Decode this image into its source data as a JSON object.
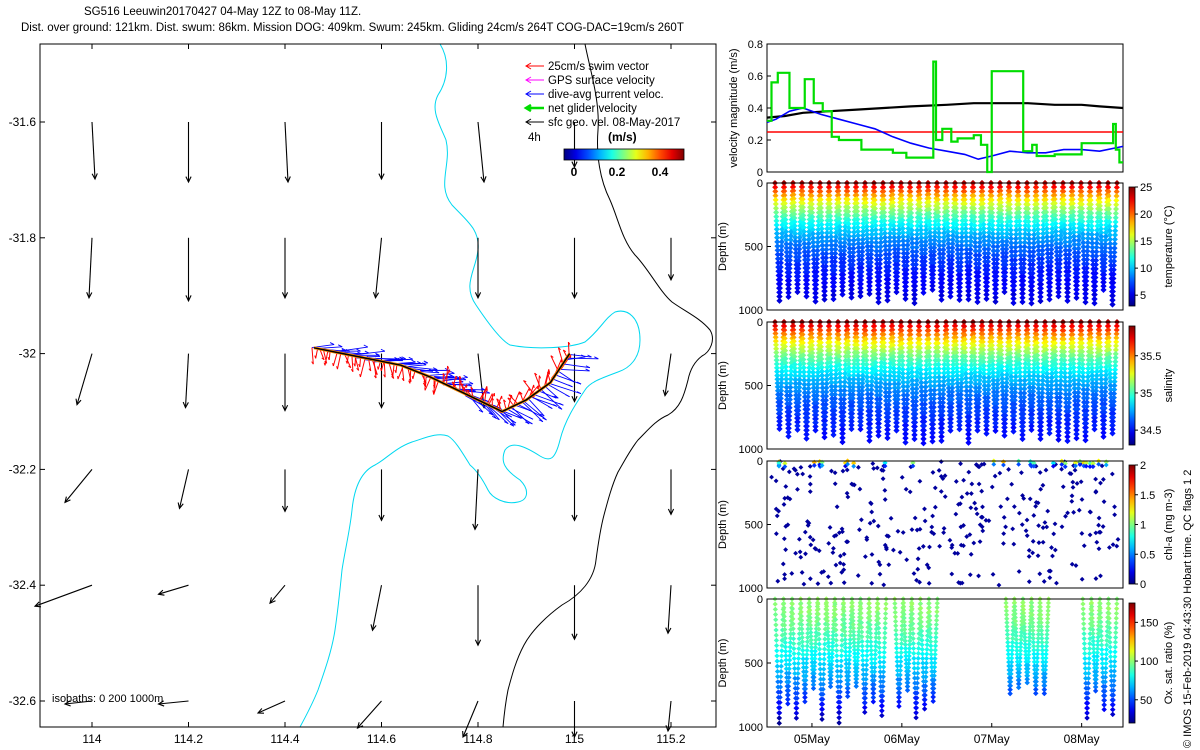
{
  "title_line1": "SG516 Leeuwin20170427 04-May 12Z to 08-May 11Z.",
  "title_line2": "Dist. over ground: 121km. Dist. swum: 86km. Mission DOG: 409km. Swum: 245km. Gliding 24cm/s 264T COG-DAC=19cm/s 260T",
  "credit": "© IMOS 15-Feb-2019 04:43:30 Hobart time. QC flags 1  2",
  "chart_data": [
    {
      "type": "map",
      "name": "track-map",
      "x_ticks": [
        "114",
        "114.2",
        "114.4",
        "114.6",
        "114.8",
        "115",
        "115.2"
      ],
      "x_tick_values": [
        114,
        114.2,
        114.4,
        114.6,
        114.8,
        115,
        115.2
      ],
      "y_ticks": [
        "-31.6",
        "-31.8",
        "-32",
        "-32.2",
        "-32.4",
        "-32.6"
      ],
      "y_tick_values": [
        -31.6,
        -31.8,
        -32,
        -32.2,
        -32.4,
        -32.6
      ],
      "xlim": [
        113.93,
        115.3
      ],
      "ylim": [
        -32.64,
        -31.47
      ],
      "legend": [
        {
          "label": "25cm/s swim vector",
          "color": "#ff0000"
        },
        {
          "label": "GPS surface velocity",
          "color": "#ff00ff"
        },
        {
          "label": "dive-avg current veloc.",
          "color": "#0000ff"
        },
        {
          "label": "net glider velocity",
          "color": "#00dd00"
        },
        {
          "label": "sfc geo. vel. 08-May-2017",
          "color": "#000000"
        }
      ],
      "vector_scale_label": "4h",
      "colorbar_title": "(m/s)",
      "colorbar_ticks": [
        "0",
        "0.2",
        "0.4"
      ],
      "isobaths_label": "isobaths: 0   200  1000m",
      "glider_track": {
        "lon": [
          114.46,
          114.52,
          114.58,
          114.64,
          114.7,
          114.75,
          114.8,
          114.85,
          114.9,
          114.95,
          114.99
        ],
        "lat": [
          -31.99,
          -32.0,
          -32.01,
          -32.02,
          -32.04,
          -32.06,
          -32.08,
          -32.1,
          -32.08,
          -32.05,
          -32.0
        ]
      },
      "geostrophic_vectors": [
        {
          "lon": 114.0,
          "lat": -31.6,
          "u": 0.01,
          "v": -0.19
        },
        {
          "lon": 114.2,
          "lat": -31.6,
          "u": 0.0,
          "v": -0.2
        },
        {
          "lon": 114.4,
          "lat": -31.6,
          "u": 0.01,
          "v": -0.2
        },
        {
          "lon": 114.6,
          "lat": -31.6,
          "u": 0.0,
          "v": -0.19
        },
        {
          "lon": 114.8,
          "lat": -31.6,
          "u": 0.02,
          "v": -0.2
        },
        {
          "lon": 115.0,
          "lat": -31.6,
          "u": 0.0,
          "v": -0.15
        },
        {
          "lon": 114.0,
          "lat": -31.8,
          "u": -0.01,
          "v": -0.2
        },
        {
          "lon": 114.2,
          "lat": -31.8,
          "u": 0.0,
          "v": -0.21
        },
        {
          "lon": 114.4,
          "lat": -31.8,
          "u": 0.0,
          "v": -0.2
        },
        {
          "lon": 114.6,
          "lat": -31.8,
          "u": -0.02,
          "v": -0.2
        },
        {
          "lon": 114.8,
          "lat": -31.8,
          "u": 0.0,
          "v": -0.2
        },
        {
          "lon": 115.0,
          "lat": -31.8,
          "u": 0.0,
          "v": -0.2
        },
        {
          "lon": 115.2,
          "lat": -31.8,
          "u": 0.0,
          "v": -0.14
        },
        {
          "lon": 114.0,
          "lat": -32.0,
          "u": -0.05,
          "v": -0.17
        },
        {
          "lon": 114.2,
          "lat": -32.0,
          "u": -0.01,
          "v": -0.18
        },
        {
          "lon": 114.4,
          "lat": -32.0,
          "u": 0.0,
          "v": -0.19
        },
        {
          "lon": 114.6,
          "lat": -32.0,
          "u": 0.0,
          "v": -0.18
        },
        {
          "lon": 114.8,
          "lat": -32.0,
          "u": 0.02,
          "v": -0.18
        },
        {
          "lon": 115.0,
          "lat": -32.0,
          "u": 0.0,
          "v": -0.16
        },
        {
          "lon": 115.2,
          "lat": -32.0,
          "u": -0.02,
          "v": -0.14
        },
        {
          "lon": 114.0,
          "lat": -32.2,
          "u": -0.09,
          "v": -0.11
        },
        {
          "lon": 114.2,
          "lat": -32.2,
          "u": -0.03,
          "v": -0.13
        },
        {
          "lon": 114.4,
          "lat": -32.2,
          "u": 0.0,
          "v": -0.14
        },
        {
          "lon": 114.6,
          "lat": -32.2,
          "u": 0.0,
          "v": -0.17
        },
        {
          "lon": 114.8,
          "lat": -32.2,
          "u": -0.01,
          "v": -0.2
        },
        {
          "lon": 115.0,
          "lat": -32.2,
          "u": 0.0,
          "v": -0.17
        },
        {
          "lon": 115.2,
          "lat": -32.2,
          "u": 0.0,
          "v": -0.15
        },
        {
          "lon": 114.0,
          "lat": -32.4,
          "u": -0.19,
          "v": -0.07
        },
        {
          "lon": 114.2,
          "lat": -32.4,
          "u": -0.1,
          "v": -0.03
        },
        {
          "lon": 114.4,
          "lat": -32.4,
          "u": -0.05,
          "v": -0.06
        },
        {
          "lon": 114.6,
          "lat": -32.4,
          "u": -0.03,
          "v": -0.15
        },
        {
          "lon": 114.8,
          "lat": -32.4,
          "u": 0.0,
          "v": -0.2
        },
        {
          "lon": 115.0,
          "lat": -32.4,
          "u": 0.0,
          "v": -0.18
        },
        {
          "lon": 115.2,
          "lat": -32.4,
          "u": -0.01,
          "v": -0.16
        },
        {
          "lon": 114.0,
          "lat": -32.6,
          "u": -0.09,
          "v": -0.01
        },
        {
          "lon": 114.2,
          "lat": -32.6,
          "u": -0.1,
          "v": -0.01
        },
        {
          "lon": 114.4,
          "lat": -32.6,
          "u": -0.09,
          "v": -0.04
        },
        {
          "lon": 114.6,
          "lat": -32.6,
          "u": -0.08,
          "v": -0.09
        },
        {
          "lon": 114.8,
          "lat": -32.6,
          "u": -0.05,
          "v": -0.12
        },
        {
          "lon": 115.0,
          "lat": -32.6,
          "u": 0.0,
          "v": -0.12
        },
        {
          "lon": 115.2,
          "lat": -32.6,
          "u": -0.01,
          "v": -0.1
        }
      ]
    },
    {
      "type": "line",
      "name": "velocity-magnitude",
      "ylabel": "velocity magnitude (m/s)",
      "yticks": [
        "0",
        "0.2",
        "0.4",
        "0.6",
        "0.8"
      ],
      "ylim": [
        0,
        0.8
      ],
      "xlim_days": [
        4.5,
        8.46
      ],
      "series": [
        {
          "name": "sfc geo. vel.",
          "color": "#000000",
          "x": [
            4.5,
            4.7,
            4.9,
            5.2,
            5.5,
            5.8,
            6.1,
            6.5,
            6.8,
            7.1,
            7.4,
            7.7,
            8.0,
            8.2,
            8.46
          ],
          "values": [
            0.34,
            0.35,
            0.37,
            0.38,
            0.39,
            0.4,
            0.41,
            0.42,
            0.43,
            0.43,
            0.43,
            0.42,
            0.42,
            0.41,
            0.4
          ]
        },
        {
          "name": "25cm/s swim vector",
          "color": "#ff0000",
          "x": [
            4.5,
            8.46
          ],
          "values": [
            0.25,
            0.25
          ]
        },
        {
          "name": "dive-avg current veloc.",
          "color": "#0000ff",
          "x": [
            4.5,
            4.6,
            4.75,
            4.9,
            5.1,
            5.3,
            5.5,
            5.7,
            5.9,
            6.1,
            6.3,
            6.5,
            6.7,
            6.85,
            7.0,
            7.2,
            7.4,
            7.6,
            7.8,
            8.0,
            8.2,
            8.46
          ],
          "values": [
            0.31,
            0.33,
            0.38,
            0.4,
            0.36,
            0.33,
            0.3,
            0.27,
            0.22,
            0.18,
            0.15,
            0.13,
            0.11,
            0.08,
            0.1,
            0.13,
            0.12,
            0.12,
            0.14,
            0.14,
            0.13,
            0.16
          ]
        },
        {
          "name": "net glider velocity",
          "color": "#00dd00",
          "x": [
            4.5,
            4.55,
            4.55,
            4.62,
            4.62,
            4.75,
            4.75,
            4.92,
            4.92,
            5.02,
            5.02,
            5.12,
            5.12,
            5.22,
            5.22,
            5.3,
            5.3,
            5.55,
            5.55,
            5.9,
            5.9,
            6.05,
            6.05,
            6.35,
            6.35,
            6.38,
            6.38,
            6.45,
            6.45,
            6.55,
            6.55,
            6.62,
            6.62,
            6.8,
            6.8,
            6.88,
            6.88,
            6.95,
            6.95,
            7.0,
            7.0,
            7.35,
            7.35,
            7.45,
            7.45,
            7.5,
            7.5,
            7.7,
            7.7,
            8.0,
            8.0,
            8.35,
            8.35,
            8.38,
            8.38,
            8.42,
            8.42,
            8.46
          ],
          "values": [
            0.32,
            0.32,
            0.56,
            0.56,
            0.62,
            0.62,
            0.4,
            0.4,
            0.58,
            0.58,
            0.43,
            0.43,
            0.38,
            0.38,
            0.22,
            0.22,
            0.2,
            0.2,
            0.14,
            0.14,
            0.12,
            0.12,
            0.09,
            0.09,
            0.69,
            0.69,
            0.2,
            0.2,
            0.27,
            0.27,
            0.19,
            0.19,
            0.21,
            0.21,
            0.23,
            0.23,
            0.17,
            0.17,
            0.0,
            0.0,
            0.63,
            0.63,
            0.13,
            0.13,
            0.17,
            0.17,
            0.1,
            0.1,
            0.11,
            0.11,
            0.18,
            0.18,
            0.3,
            0.3,
            0.14,
            0.14,
            0.06,
            0.06
          ]
        }
      ]
    },
    {
      "type": "scatter",
      "name": "temperature-section",
      "ylabel": "Depth (m)",
      "yticks": [
        "0",
        "500",
        "1000"
      ],
      "ylim": [
        1000,
        0
      ],
      "colorbar_label": "temperature (°C)",
      "colorbar_ticks": [
        "5",
        "10",
        "15",
        "20",
        "25"
      ],
      "clim": [
        3,
        25
      ],
      "profile": {
        "surface": 24,
        "bottom": 4,
        "scale_m": 320
      },
      "n_casts": 38,
      "max_depth_m": 960
    },
    {
      "type": "scatter",
      "name": "salinity-section",
      "ylabel": "Depth (m)",
      "yticks": [
        "0",
        "500",
        "1000"
      ],
      "ylim": [
        1000,
        0
      ],
      "colorbar_label": "salinity",
      "colorbar_ticks": [
        "34.5",
        "35",
        "35.5"
      ],
      "clim": [
        34.3,
        35.9
      ],
      "profile": {
        "surface": 35.85,
        "bottom": 34.4,
        "scale_m": 350
      },
      "n_casts": 38,
      "max_depth_m": 960
    },
    {
      "type": "scatter",
      "name": "chlorophyll-section",
      "ylabel": "Depth (m)",
      "yticks": [
        "0",
        "500",
        "1000"
      ],
      "ylim": [
        1000,
        0
      ],
      "colorbar_label": "chl-a (mg m-3)",
      "colorbar_ticks": [
        "0",
        "0.5",
        "1",
        "1.5",
        "2"
      ],
      "clim": [
        0,
        2
      ],
      "n_casts": 38,
      "max_depth_m": 980
    },
    {
      "type": "scatter",
      "name": "oxygen-section",
      "ylabel": "Depth (m)",
      "yticks": [
        "0",
        "500",
        "1000"
      ],
      "ylim": [
        1000,
        0
      ],
      "colorbar_label": "Ox. sat. ratio (%)",
      "colorbar_ticks": [
        "50",
        "100",
        "150"
      ],
      "clim": [
        20,
        175
      ],
      "xticks": [
        "05May",
        "06May",
        "07May",
        "08May"
      ],
      "xtick_days": [
        5,
        6,
        7,
        8
      ],
      "xlim_days": [
        4.5,
        8.46
      ],
      "gaps_days": [
        [
          5.75,
          5.86
        ],
        [
          6.35,
          7.08
        ],
        [
          7.62,
          7.92
        ]
      ]
    }
  ]
}
